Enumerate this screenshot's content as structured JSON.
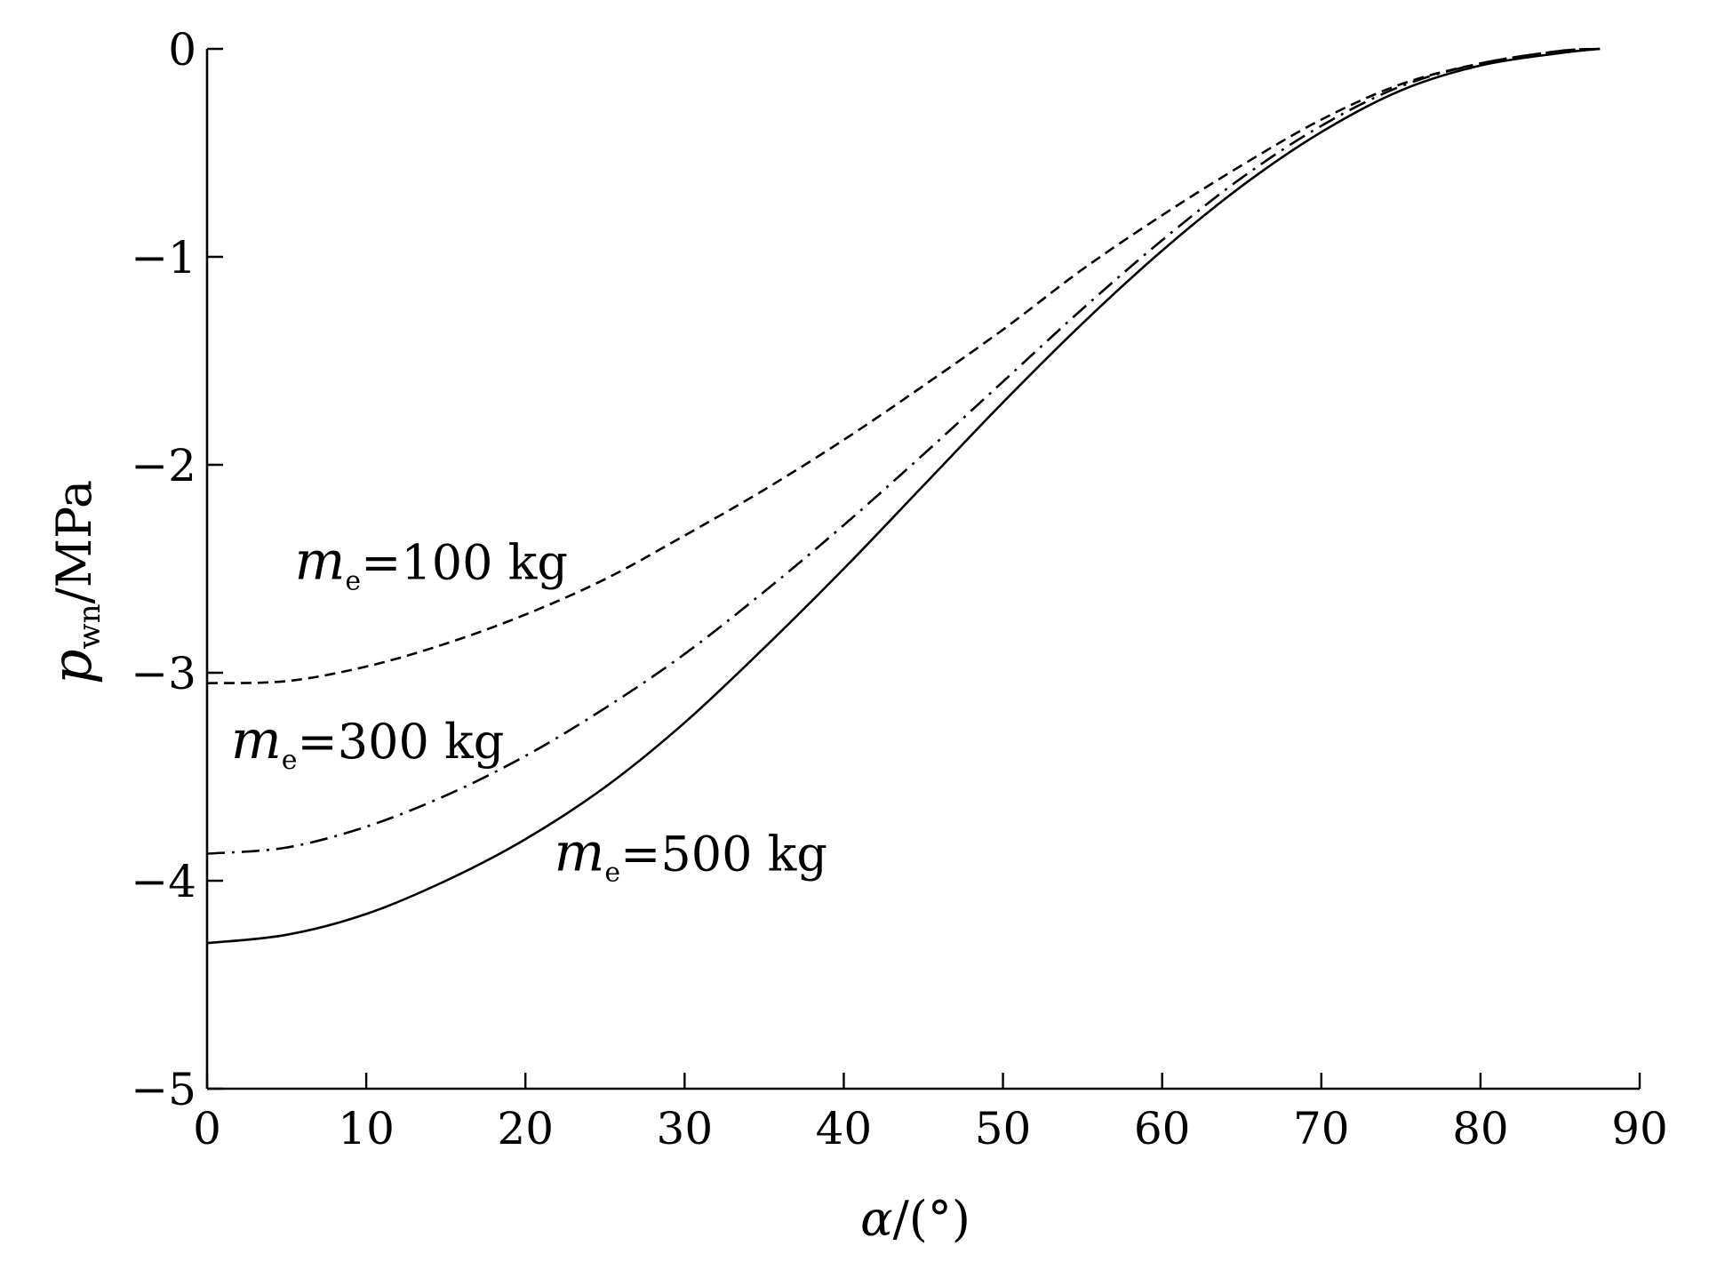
{
  "chart_data": {
    "type": "line",
    "title": "",
    "xlabel": {
      "symbol": "α",
      "unit": "/(°)"
    },
    "ylabel": {
      "symbol": "p",
      "sub": "wn",
      "unit": "/MPa"
    },
    "xlim": [
      0,
      90
    ],
    "ylim": [
      -5,
      0
    ],
    "xticks": [
      0,
      10,
      20,
      30,
      40,
      50,
      60,
      70,
      80,
      90
    ],
    "yticks": [
      0,
      -1,
      -2,
      -3,
      -4,
      -5
    ],
    "xtick_labels": [
      "0",
      "10",
      "20",
      "30",
      "40",
      "50",
      "60",
      "70",
      "80",
      "90"
    ],
    "ytick_labels": [
      "0",
      "−1",
      "−2",
      "−3",
      "−4",
      "−5"
    ],
    "grid": false,
    "legend": "none",
    "series": [
      {
        "line_style": "dashed",
        "x": [
          0,
          5,
          10,
          15,
          20,
          25,
          30,
          35,
          40,
          45,
          50,
          55,
          60,
          65,
          70,
          75,
          80,
          85,
          87.5
        ],
        "y": [
          -3.05,
          -3.04,
          -2.97,
          -2.86,
          -2.72,
          -2.55,
          -2.34,
          -2.12,
          -1.88,
          -1.62,
          -1.35,
          -1.06,
          -0.8,
          -0.56,
          -0.34,
          -0.17,
          -0.07,
          -0.01,
          0.0
        ]
      },
      {
        "line_style": "dash-dot",
        "x": [
          0,
          5,
          10,
          15,
          20,
          25,
          30,
          35,
          40,
          45,
          50,
          55,
          60,
          65,
          70,
          75,
          80,
          85,
          87.5
        ],
        "y": [
          -3.87,
          -3.84,
          -3.74,
          -3.59,
          -3.4,
          -3.17,
          -2.91,
          -2.61,
          -2.29,
          -1.95,
          -1.6,
          -1.25,
          -0.92,
          -0.62,
          -0.37,
          -0.18,
          -0.07,
          -0.01,
          0.0
        ]
      },
      {
        "line_style": "solid",
        "x": [
          0,
          5,
          10,
          15,
          20,
          25,
          30,
          35,
          40,
          45,
          50,
          55,
          60,
          65,
          70,
          75,
          80,
          85,
          87.5
        ],
        "y": [
          -4.3,
          -4.26,
          -4.16,
          -4.0,
          -3.8,
          -3.55,
          -3.24,
          -2.88,
          -2.5,
          -2.1,
          -1.7,
          -1.32,
          -0.97,
          -0.66,
          -0.4,
          -0.2,
          -0.08,
          -0.02,
          0.0
        ]
      }
    ],
    "annotations": [
      {
        "symbol": "m",
        "sub": "e",
        "text": "=100 kg",
        "x": 5.5,
        "y": -2.55
      },
      {
        "symbol": "m",
        "sub": "e",
        "text": "=300 kg",
        "x": 1.5,
        "y": -3.41
      },
      {
        "symbol": "m",
        "sub": "e",
        "text": "=500 kg",
        "x": 21.8,
        "y": -3.95
      }
    ]
  }
}
